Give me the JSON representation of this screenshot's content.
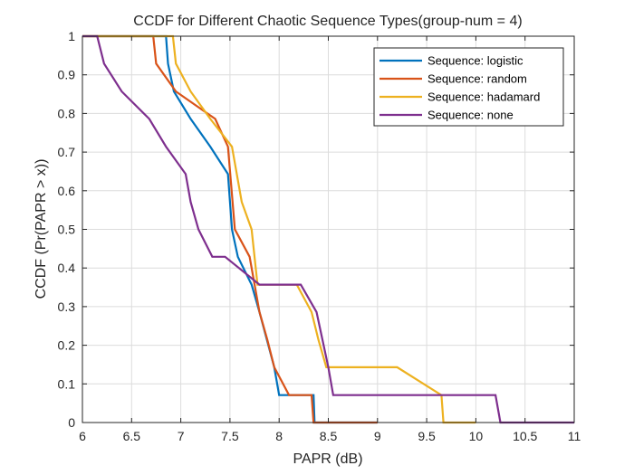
{
  "chart_data": {
    "type": "line",
    "title": "CCDF for Different Chaotic Sequence Types(group-num = 4)",
    "xlabel": "PAPR (dB)",
    "ylabel": "CCDF (Pr(PAPR > x))",
    "xlim": [
      6,
      11
    ],
    "ylim": [
      0,
      1
    ],
    "xticks": [
      "6",
      "6.5",
      "7",
      "7.5",
      "8",
      "8.5",
      "9",
      "9.5",
      "10",
      "10.5",
      "11"
    ],
    "yticks": [
      "0",
      "0.1",
      "0.2",
      "0.3",
      "0.4",
      "0.5",
      "0.6",
      "0.7",
      "0.8",
      "0.9",
      "1"
    ],
    "grid": true,
    "legend_position": "top-right",
    "series": [
      {
        "name": "Sequence: logistic",
        "color": "#0072BD",
        "x": [
          6.0,
          6.85,
          6.87,
          6.93,
          7.1,
          7.3,
          7.48,
          7.52,
          7.58,
          7.72,
          7.8,
          7.95,
          8.0,
          8.35,
          8.36,
          9.0
        ],
        "y": [
          1.0,
          1.0,
          0.929,
          0.857,
          0.786,
          0.714,
          0.643,
          0.5,
          0.429,
          0.357,
          0.286,
          0.143,
          0.071,
          0.071,
          0.0,
          0.0
        ]
      },
      {
        "name": "Sequence: random",
        "color": "#D95319",
        "x": [
          6.0,
          6.72,
          6.75,
          6.95,
          7.35,
          7.48,
          7.55,
          7.7,
          7.8,
          7.88,
          7.95,
          8.1,
          8.33,
          8.35,
          9.0
        ],
        "y": [
          1.0,
          1.0,
          0.929,
          0.857,
          0.786,
          0.714,
          0.5,
          0.429,
          0.286,
          0.214,
          0.143,
          0.071,
          0.071,
          0.0,
          0.0
        ]
      },
      {
        "name": "Sequence: hadamard",
        "color": "#EDB120",
        "x": [
          6.0,
          6.92,
          6.95,
          7.1,
          7.3,
          7.52,
          7.62,
          7.72,
          7.78,
          8.18,
          8.33,
          8.4,
          8.48,
          9.2,
          9.65,
          9.67,
          10.0
        ],
        "y": [
          1.0,
          1.0,
          0.929,
          0.857,
          0.786,
          0.714,
          0.571,
          0.5,
          0.357,
          0.357,
          0.286,
          0.214,
          0.143,
          0.143,
          0.071,
          0.0,
          0.0
        ]
      },
      {
        "name": "Sequence: none",
        "color": "#7E2F8E",
        "x": [
          6.0,
          6.15,
          6.22,
          6.4,
          6.68,
          6.85,
          7.05,
          7.1,
          7.18,
          7.32,
          7.45,
          7.8,
          8.22,
          8.38,
          8.5,
          8.55,
          10.2,
          10.25,
          11.0
        ],
        "y": [
          1.0,
          1.0,
          0.929,
          0.857,
          0.786,
          0.714,
          0.643,
          0.571,
          0.5,
          0.429,
          0.429,
          0.357,
          0.357,
          0.286,
          0.143,
          0.071,
          0.071,
          0.0,
          0.0
        ]
      }
    ]
  }
}
